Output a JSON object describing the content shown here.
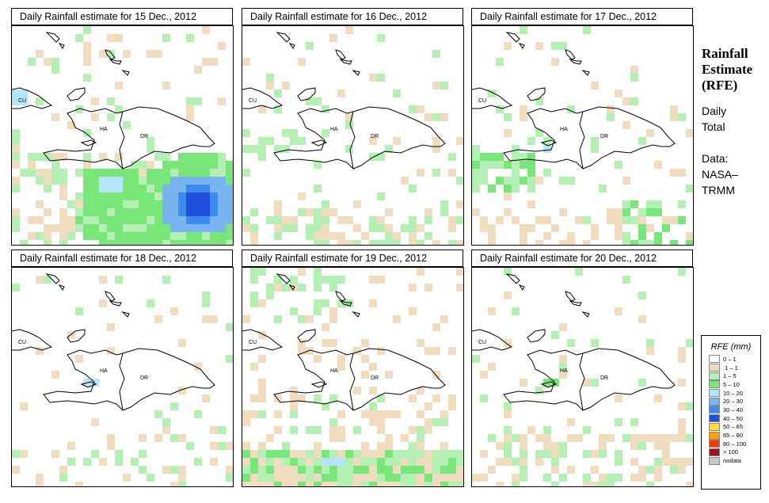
{
  "panels": [
    {
      "title": "Daily Rainfall estimate for  15 Dec., 2012",
      "labels": {
        "cu": "CU",
        "ha": "HA",
        "dr": "DR"
      }
    },
    {
      "title": "Daily Rainfall estimate for  16 Dec., 2012",
      "labels": {
        "cu": "CU",
        "ha": "HA",
        "dr": "DR"
      }
    },
    {
      "title": "Daily Rainfall estimate for  17 Dec., 2012",
      "labels": {
        "cu": "CU",
        "ha": "HA",
        "dr": "DR"
      }
    },
    {
      "title": "Daily Rainfall estimate for  18 Dec., 2012",
      "labels": {
        "cu": "CU",
        "ha": "HA",
        "dr": "DR"
      }
    },
    {
      "title": "Daily Rainfall estimate for  19 Dec., 2012",
      "labels": {
        "cu": "CU",
        "ha": "HA",
        "dr": "DR"
      }
    },
    {
      "title": "Daily Rainfall estimate for  20 Dec., 2012",
      "labels": {
        "cu": "CU",
        "ha": "HA",
        "dr": "DR"
      }
    }
  ],
  "sidebar": {
    "title_line1": "Rainfall",
    "title_line2": "Estimate",
    "title_line3": "(RFE)",
    "daily": "Daily",
    "total": "Total",
    "data_label": "Data:",
    "source_line1": "NASA–",
    "source_line2": "TRMM"
  },
  "legend": {
    "title": "RFE (mm)",
    "items": [
      {
        "label": "0 – 1",
        "color": "#ffffff"
      },
      {
        "label": ".1 – 1",
        "color": "#f0dcbe"
      },
      {
        "label": "1 – 5",
        "color": "#b4f0b4"
      },
      {
        "label": "5 – 10",
        "color": "#78e678"
      },
      {
        "label": "10 – 20",
        "color": "#b4e6fa"
      },
      {
        "label": "20 – 30",
        "color": "#78b4f0"
      },
      {
        "label": "30 – 40",
        "color": "#3c8cf0"
      },
      {
        "label": "40 – 50",
        "color": "#1e50dc"
      },
      {
        "label": "50 – 65",
        "color": "#ffdc3c"
      },
      {
        "label": "65 – 80",
        "color": "#ffa000"
      },
      {
        "label": "80 – 100",
        "color": "#f03c00"
      },
      {
        "label": "> 100",
        "color": "#a01414"
      },
      {
        "label": "nodata",
        "color": "#c8c8c8"
      }
    ]
  }
}
